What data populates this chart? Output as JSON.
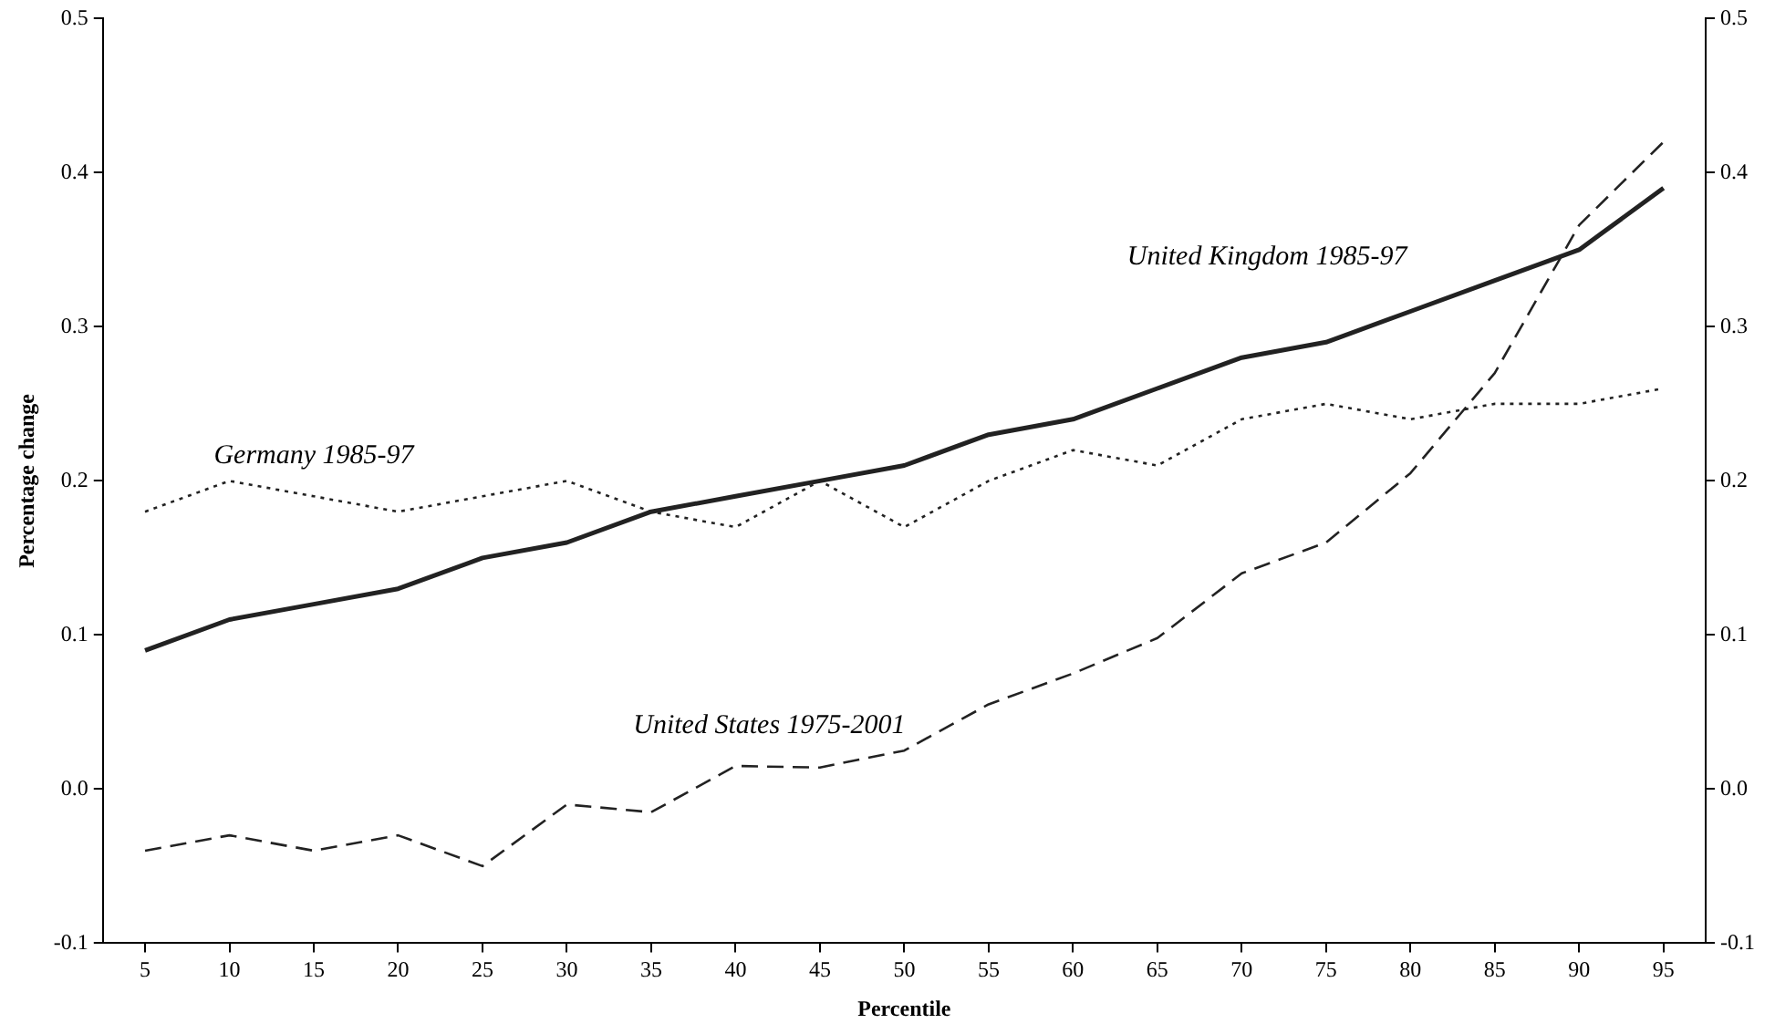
{
  "chart_data": {
    "type": "line",
    "xlabel": "Percentile",
    "ylabel": "Percentage change",
    "categories": [
      "5",
      "10",
      "15",
      "20",
      "25",
      "30",
      "35",
      "40",
      "45",
      "50",
      "55",
      "60",
      "65",
      "70",
      "75",
      "80",
      "85",
      "90",
      "95"
    ],
    "series": [
      {
        "name": "United Kingdom 1985-97",
        "color": "#222222",
        "line_style": "solid",
        "values": [
          0.09,
          0.11,
          0.12,
          0.13,
          0.15,
          0.16,
          0.18,
          0.19,
          0.2,
          0.21,
          0.23,
          0.24,
          0.26,
          0.28,
          0.29,
          0.31,
          0.33,
          0.35,
          0.39
        ]
      },
      {
        "name": "Germany 1985-97",
        "color": "#222222",
        "line_style": "dotted",
        "values": [
          0.18,
          0.2,
          0.19,
          0.18,
          0.19,
          0.2,
          0.18,
          0.17,
          0.2,
          0.17,
          0.2,
          0.22,
          0.21,
          0.24,
          0.25,
          0.24,
          0.25,
          0.25,
          0.26
        ]
      },
      {
        "name": "United States 1975-2001",
        "color": "#222222",
        "line_style": "dashed",
        "values": [
          -0.04,
          -0.03,
          -0.04,
          -0.03,
          -0.05,
          -0.01,
          -0.015,
          0.015,
          0.014,
          0.025,
          0.055,
          0.075,
          0.098,
          0.14,
          0.16,
          0.205,
          0.27,
          0.366,
          0.42
        ]
      }
    ],
    "ylim": [
      -0.1,
      0.5
    ],
    "yticks": [
      -0.1,
      {
        "value": 0,
        "label": "0.0"
      },
      0.1,
      0.2,
      0.3,
      0.4,
      0.5
    ],
    "y2lim": [
      -0.1,
      0.5
    ],
    "y2ticks": [
      -0.1,
      {
        "value": 0,
        "label": "0.0"
      },
      0.1,
      0.2,
      0.3,
      0.4,
      0.5
    ],
    "grid": false,
    "legend": false,
    "marker": "none"
  }
}
